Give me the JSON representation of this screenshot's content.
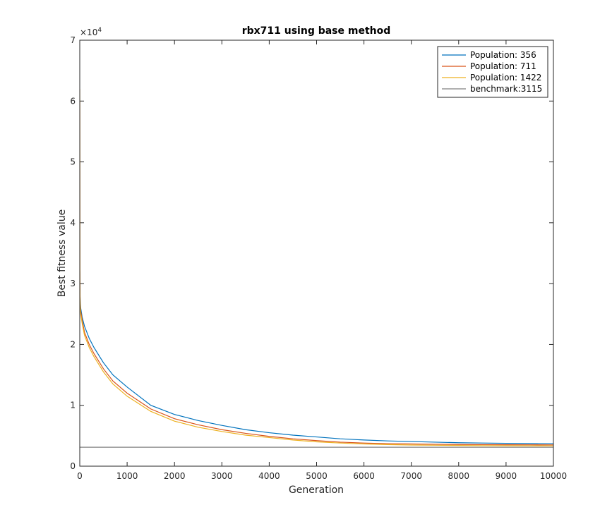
{
  "chart_data": {
    "type": "line",
    "title": "rbx711 using base method",
    "xlabel": "Generation",
    "ylabel": "Best fitness value",
    "xlim": [
      0,
      10000
    ],
    "ylim": [
      0,
      70000
    ],
    "x_ticks": [
      0,
      1000,
      2000,
      3000,
      4000,
      5000,
      6000,
      7000,
      8000,
      9000,
      10000
    ],
    "y_ticks": [
      0,
      1,
      2,
      3,
      4,
      5,
      6,
      7
    ],
    "y_exponent_label": "×10",
    "y_exponent_power": "4",
    "y_multiplier": 10000,
    "legend_position": "top-right",
    "grid": false,
    "series": [
      {
        "name": "Population: 356",
        "color": "#0072BD",
        "x": [
          0,
          2,
          5,
          10,
          20,
          50,
          100,
          200,
          300,
          500,
          700,
          1000,
          1500,
          2000,
          2500,
          3000,
          3500,
          4000,
          4500,
          5000,
          5500,
          6000,
          6500,
          7000,
          7500,
          8000,
          8500,
          9000,
          9500,
          10000
        ],
        "y": [
          32000,
          29000,
          28000,
          27000,
          26000,
          24500,
          23000,
          21000,
          19500,
          17000,
          15000,
          13000,
          10000,
          8500,
          7500,
          6700,
          6000,
          5500,
          5100,
          4800,
          4500,
          4300,
          4150,
          4050,
          3950,
          3850,
          3800,
          3750,
          3720,
          3700
        ]
      },
      {
        "name": "Population: 711",
        "color": "#D95319",
        "x": [
          0,
          2,
          5,
          10,
          20,
          50,
          100,
          200,
          300,
          500,
          700,
          1000,
          1500,
          2000,
          2500,
          3000,
          3500,
          4000,
          4500,
          5000,
          5500,
          6000,
          6500,
          7000,
          7500,
          8000,
          8500,
          9000,
          9500,
          10000
        ],
        "y": [
          60000,
          32000,
          28500,
          26500,
          25500,
          24000,
          22000,
          20000,
          18500,
          16000,
          14000,
          12000,
          9400,
          7800,
          6800,
          6000,
          5400,
          4900,
          4500,
          4200,
          3950,
          3800,
          3700,
          3650,
          3600,
          3560,
          3540,
          3520,
          3510,
          3500
        ]
      },
      {
        "name": "Population: 1422",
        "color": "#EDB120",
        "x": [
          0,
          2,
          5,
          10,
          20,
          50,
          100,
          200,
          300,
          500,
          700,
          1000,
          1500,
          2000,
          2500,
          3000,
          3500,
          4000,
          4500,
          5000,
          5500,
          6000,
          6500,
          7000,
          7500,
          8000,
          8500,
          9000,
          9500,
          10000
        ],
        "y": [
          62000,
          30000,
          27500,
          26000,
          25000,
          23500,
          21500,
          19500,
          18000,
          15500,
          13500,
          11500,
          9000,
          7400,
          6400,
          5700,
          5100,
          4700,
          4300,
          4000,
          3800,
          3650,
          3550,
          3480,
          3440,
          3400,
          3380,
          3360,
          3350,
          3340
        ]
      },
      {
        "name": "benchmark:3115",
        "color": "#808080",
        "x": [
          0,
          10000
        ],
        "y": [
          3115,
          3115
        ]
      }
    ]
  }
}
